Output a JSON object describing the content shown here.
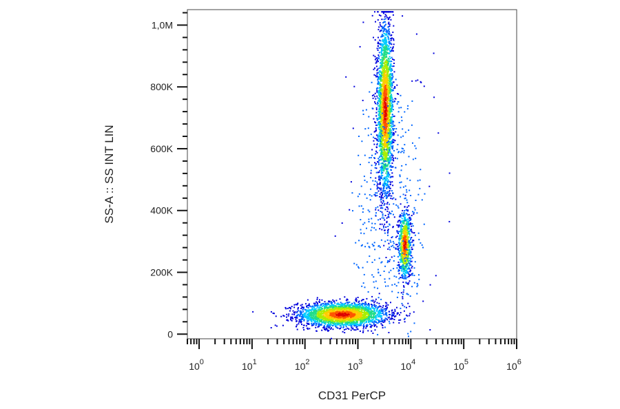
{
  "chart_data": {
    "type": "scatter",
    "title": "",
    "xlabel": "CD31 PerCP",
    "ylabel": "SS-A :: SS INT LIN",
    "x_scale": "log",
    "xlim": [
      0.6,
      1000000
    ],
    "ylim": [
      -15000,
      1050000
    ],
    "grid": false,
    "legend": "none",
    "x_ticks": [
      {
        "value": 1,
        "label_base": "10",
        "label_exp": "0"
      },
      {
        "value": 10,
        "label_base": "10",
        "label_exp": "1"
      },
      {
        "value": 100,
        "label_base": "10",
        "label_exp": "2"
      },
      {
        "value": 1000,
        "label_base": "10",
        "label_exp": "3"
      },
      {
        "value": 10000,
        "label_base": "10",
        "label_exp": "4"
      },
      {
        "value": 100000,
        "label_base": "10",
        "label_exp": "5"
      },
      {
        "value": 1000000,
        "label_base": "10",
        "label_exp": "6"
      }
    ],
    "y_ticks": [
      {
        "value": 0,
        "label": "0"
      },
      {
        "value": 200000,
        "label": "200K"
      },
      {
        "value": 400000,
        "label": "400K"
      },
      {
        "value": 600000,
        "label": "600K"
      },
      {
        "value": 800000,
        "label": "800K"
      },
      {
        "value": 1000000,
        "label": "1,0M"
      }
    ],
    "density_colors": [
      "#0000dd",
      "#0066ff",
      "#00ccff",
      "#22dd88",
      "#aaee00",
      "#ffcc00",
      "#ff5500",
      "#dd0000"
    ],
    "populations": [
      {
        "x_center": 500,
        "x_log_sd": 0.42,
        "y_center": 65000,
        "y_sd": 20000,
        "count": 2600
      },
      {
        "x_center": 3200,
        "x_log_sd": 0.075,
        "y_center": 730000,
        "y_sd": 140000,
        "count": 2400
      },
      {
        "x_center": 7500,
        "x_log_sd": 0.06,
        "y_center": 290000,
        "y_sd": 55000,
        "count": 800
      },
      {
        "x_center": 4000,
        "x_log_sd": 0.35,
        "y_center": 400000,
        "y_sd": 240000,
        "count": 500
      }
    ]
  }
}
